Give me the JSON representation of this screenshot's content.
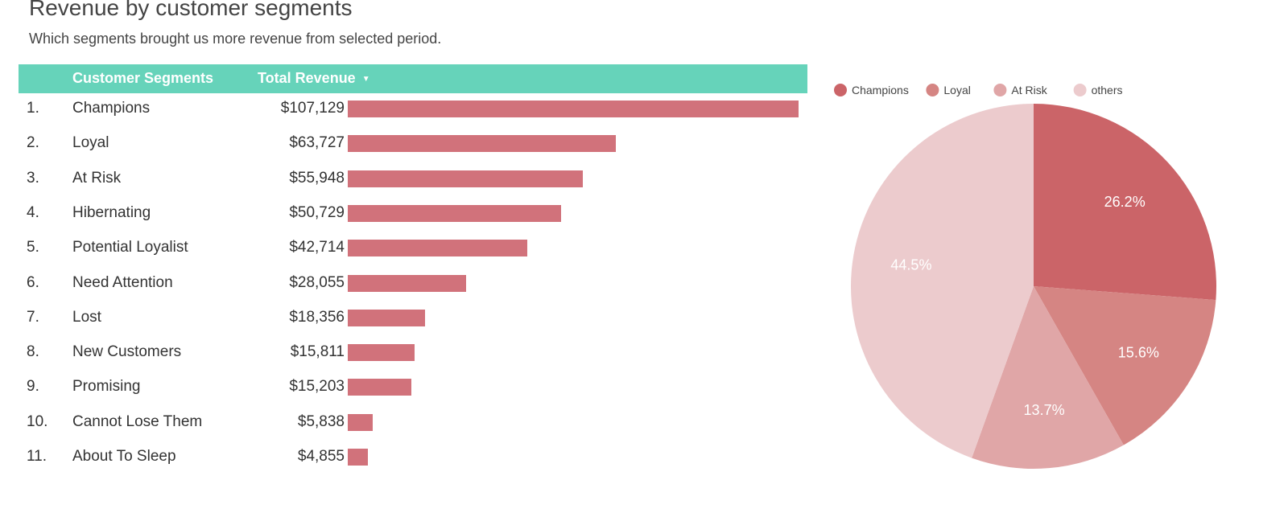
{
  "header": {
    "title": "Revenue by customer segments",
    "subtitle": "Which segments brought us more revenue from selected period."
  },
  "table": {
    "col_segments": "Customer Segments",
    "col_revenue": "Total Revenue",
    "sort_icon": "sort-desc-caret",
    "header_color": "#66d3ba",
    "bar_color": "#d1727b",
    "rows": [
      {
        "rank": "1.",
        "segment": "Champions",
        "revenue": "$107,129",
        "value": 107129
      },
      {
        "rank": "2.",
        "segment": "Loyal",
        "revenue": "$63,727",
        "value": 63727
      },
      {
        "rank": "3.",
        "segment": "At Risk",
        "revenue": "$55,948",
        "value": 55948
      },
      {
        "rank": "4.",
        "segment": "Hibernating",
        "revenue": "$50,729",
        "value": 50729
      },
      {
        "rank": "5.",
        "segment": "Potential Loyalist",
        "revenue": "$42,714",
        "value": 42714
      },
      {
        "rank": "6.",
        "segment": "Need Attention",
        "revenue": "$28,055",
        "value": 28055
      },
      {
        "rank": "7.",
        "segment": "Lost",
        "revenue": "$18,356",
        "value": 18356
      },
      {
        "rank": "8.",
        "segment": "New Customers",
        "revenue": "$15,811",
        "value": 15811
      },
      {
        "rank": "9.",
        "segment": "Promising",
        "revenue": "$15,203",
        "value": 15203
      },
      {
        "rank": "10.",
        "segment": "Cannot Lose Them",
        "revenue": "$5,838",
        "value": 5838
      },
      {
        "rank": "11.",
        "segment": "About To Sleep",
        "revenue": "$4,855",
        "value": 4855
      }
    ]
  },
  "chart_data": [
    {
      "type": "bar",
      "orientation": "horizontal",
      "categories": [
        "Champions",
        "Loyal",
        "At Risk",
        "Hibernating",
        "Potential Loyalist",
        "Need Attention",
        "Lost",
        "New Customers",
        "Promising",
        "Cannot Lose Them",
        "About To Sleep"
      ],
      "values": [
        107129,
        63727,
        55948,
        50729,
        42714,
        28055,
        18356,
        15811,
        15203,
        5838,
        4855
      ],
      "title": "",
      "xlabel": "",
      "ylabel": ""
    },
    {
      "type": "pie",
      "legend_position": "top",
      "slices": [
        {
          "label": "Champions",
          "value": 26.2,
          "display": "26.2%",
          "color": "#cb6468"
        },
        {
          "label": "Loyal",
          "value": 15.6,
          "display": "15.6%",
          "color": "#d58583"
        },
        {
          "label": "At Risk",
          "value": 13.7,
          "display": "13.7%",
          "color": "#e0a6a7"
        },
        {
          "label": "others",
          "value": 44.5,
          "display": "44.5%",
          "color": "#eccbcd"
        }
      ]
    }
  ]
}
